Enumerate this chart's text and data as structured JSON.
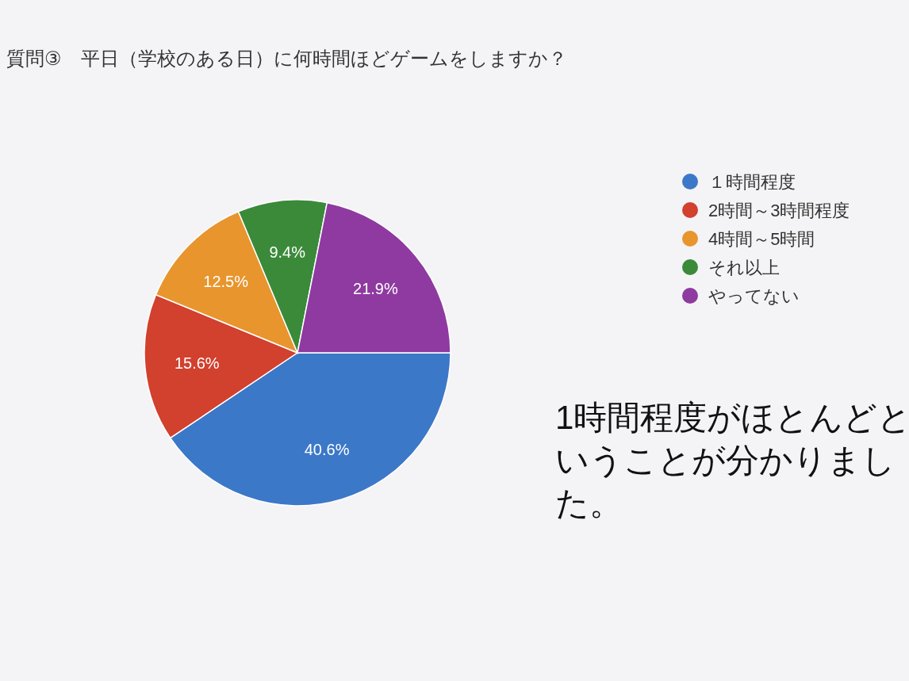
{
  "chart_data": {
    "type": "pie",
    "title": "質問③　平日（学校のある日）に何時間ほどゲームをしますか？",
    "categories": [
      "１時間程度",
      "2時間～3時間程度",
      "4時間～5時間",
      "それ以上",
      "やってない"
    ],
    "values": [
      40.6,
      15.6,
      12.5,
      9.4,
      21.9
    ],
    "colors": [
      "#3c78c8",
      "#d2402e",
      "#e8952e",
      "#3a8a3a",
      "#8e3aa0"
    ],
    "value_labels": [
      "40.6%",
      "15.6%",
      "12.5%",
      "9.4%",
      "21.9%"
    ],
    "legend": "right",
    "annotations": [
      "1時間程度がほとんどということが分かりました。"
    ]
  }
}
